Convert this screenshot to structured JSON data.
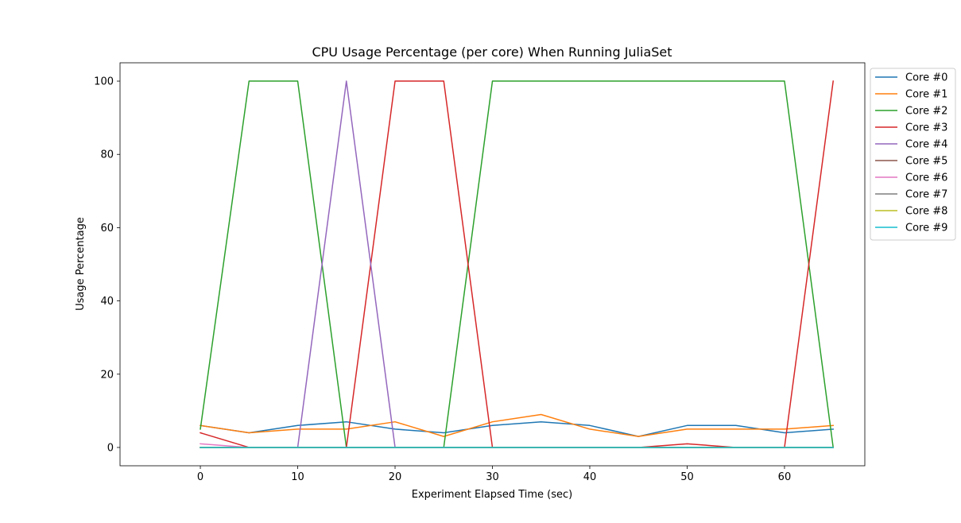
{
  "chart_data": {
    "type": "line",
    "title": "CPU Usage Percentage (per core) When Running JuliaSet",
    "xlabel": "Experiment Elapsed Time (sec)",
    "ylabel": "Usage Percentage",
    "xlim": [
      -8.25,
      68.25
    ],
    "ylim": [
      -5,
      105
    ],
    "xticks": [
      0,
      10,
      20,
      30,
      40,
      50,
      60
    ],
    "yticks": [
      0,
      20,
      40,
      60,
      80,
      100
    ],
    "grid": false,
    "legend_position": "outside-top-right",
    "x": [
      0,
      5,
      10,
      15,
      20,
      25,
      30,
      35,
      40,
      45,
      50,
      55,
      60,
      65
    ],
    "series": [
      {
        "name": "Core #0",
        "color": "#1f77b4",
        "values": [
          6,
          4,
          6,
          7,
          5,
          4,
          6,
          7,
          6,
          3,
          6,
          6,
          4,
          5
        ]
      },
      {
        "name": "Core #1",
        "color": "#ff7f0e",
        "values": [
          6,
          4,
          5,
          5,
          7,
          3,
          7,
          9,
          5,
          3,
          5,
          5,
          5,
          6
        ]
      },
      {
        "name": "Core #2",
        "color": "#2ca02c",
        "values": [
          5,
          100,
          100,
          0,
          0,
          0,
          100,
          100,
          100,
          100,
          100,
          100,
          100,
          0
        ]
      },
      {
        "name": "Core #3",
        "color": "#d62728",
        "values": [
          4,
          0,
          0,
          0,
          100,
          100,
          0,
          0,
          0,
          0,
          1,
          0,
          0,
          100
        ]
      },
      {
        "name": "Core #4",
        "color": "#9467bd",
        "values": [
          0,
          0,
          0,
          100,
          0,
          0,
          0,
          0,
          0,
          0,
          0,
          0,
          0,
          0
        ]
      },
      {
        "name": "Core #5",
        "color": "#8c564b",
        "values": [
          0,
          0,
          0,
          0,
          0,
          0,
          0,
          0,
          0,
          0,
          0,
          0,
          0,
          0
        ]
      },
      {
        "name": "Core #6",
        "color": "#e377c2",
        "values": [
          1,
          0,
          0,
          0,
          0,
          0,
          0,
          0,
          0,
          0,
          0,
          0,
          0,
          0
        ]
      },
      {
        "name": "Core #7",
        "color": "#7f7f7f",
        "values": [
          0,
          0,
          0,
          0,
          0,
          0,
          0,
          0,
          0,
          0,
          0,
          0,
          0,
          0
        ]
      },
      {
        "name": "Core #8",
        "color": "#bcbd22",
        "values": [
          0,
          0,
          0,
          0,
          0,
          0,
          0,
          0,
          0,
          0,
          0,
          0,
          0,
          0
        ]
      },
      {
        "name": "Core #9",
        "color": "#17becf",
        "values": [
          0,
          0,
          0,
          0,
          0,
          0,
          0,
          0,
          0,
          0,
          0,
          0,
          0,
          0
        ]
      }
    ]
  }
}
